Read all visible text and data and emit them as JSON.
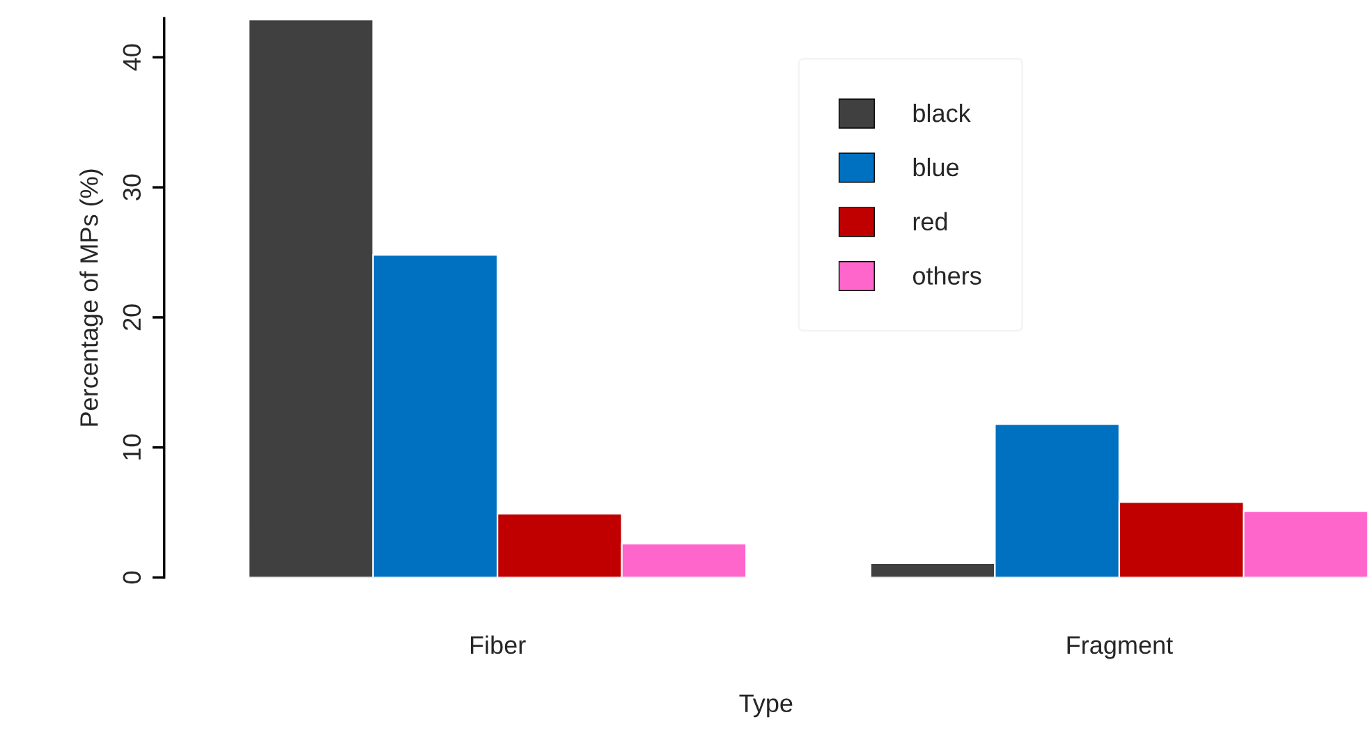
{
  "chart_data": {
    "type": "bar",
    "xlabel": "Type",
    "ylabel": "Percentage of MPs (%)",
    "categories": [
      "Fiber",
      "Fragment"
    ],
    "series": [
      {
        "name": "black",
        "color": "#404040",
        "values": [
          42.9,
          1.1
        ]
      },
      {
        "name": "blue",
        "color": "#0070c0",
        "values": [
          24.8,
          11.8
        ]
      },
      {
        "name": "red",
        "color": "#c00000",
        "values": [
          4.9,
          5.8
        ]
      },
      {
        "name": "others",
        "color": "#ff66cc",
        "values": [
          2.6,
          5.1
        ]
      }
    ],
    "ylim": [
      0,
      43
    ],
    "yticks": [
      0,
      10,
      20,
      30,
      40
    ],
    "grid": false,
    "legend": "top"
  }
}
